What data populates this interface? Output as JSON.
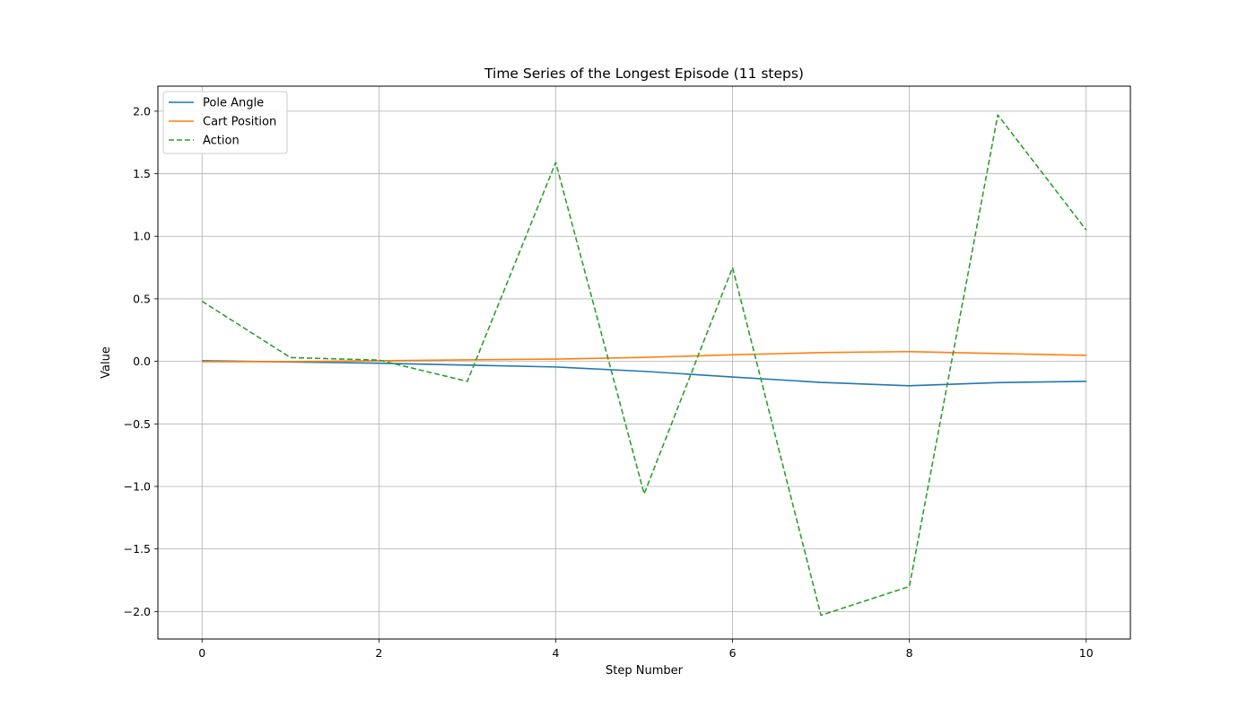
{
  "chart_data": {
    "type": "line",
    "title": "Time Series of the Longest Episode (11 steps)",
    "xlabel": "Step Number",
    "ylabel": "Value",
    "xlim": [
      -0.5,
      10.5
    ],
    "ylim": [
      -2.22,
      2.2
    ],
    "xticks": [
      0,
      2,
      4,
      6,
      8,
      10
    ],
    "yticks": [
      -2.0,
      -1.5,
      -1.0,
      -0.5,
      0.0,
      0.5,
      1.0,
      1.5,
      2.0
    ],
    "grid": true,
    "legend_position": "top-left",
    "x": [
      0,
      1,
      2,
      3,
      4,
      5,
      6,
      7,
      8,
      9,
      10
    ],
    "series": [
      {
        "name": "Pole Angle",
        "color": "#1f77b4",
        "dash": "solid",
        "values": [
          0.005,
          -0.005,
          -0.015,
          -0.03,
          -0.045,
          -0.08,
          -0.125,
          -0.168,
          -0.195,
          -0.17,
          -0.16
        ]
      },
      {
        "name": "Cart Position",
        "color": "#ff7f0e",
        "dash": "solid",
        "values": [
          -0.002,
          -0.002,
          0.005,
          0.012,
          0.018,
          0.032,
          0.052,
          0.07,
          0.078,
          0.062,
          0.048
        ]
      },
      {
        "name": "Action",
        "color": "#2ca02c",
        "dash": "dashed",
        "values": [
          0.48,
          0.03,
          0.01,
          -0.16,
          1.59,
          -1.06,
          0.75,
          -2.03,
          -1.8,
          1.97,
          1.05
        ]
      }
    ]
  }
}
